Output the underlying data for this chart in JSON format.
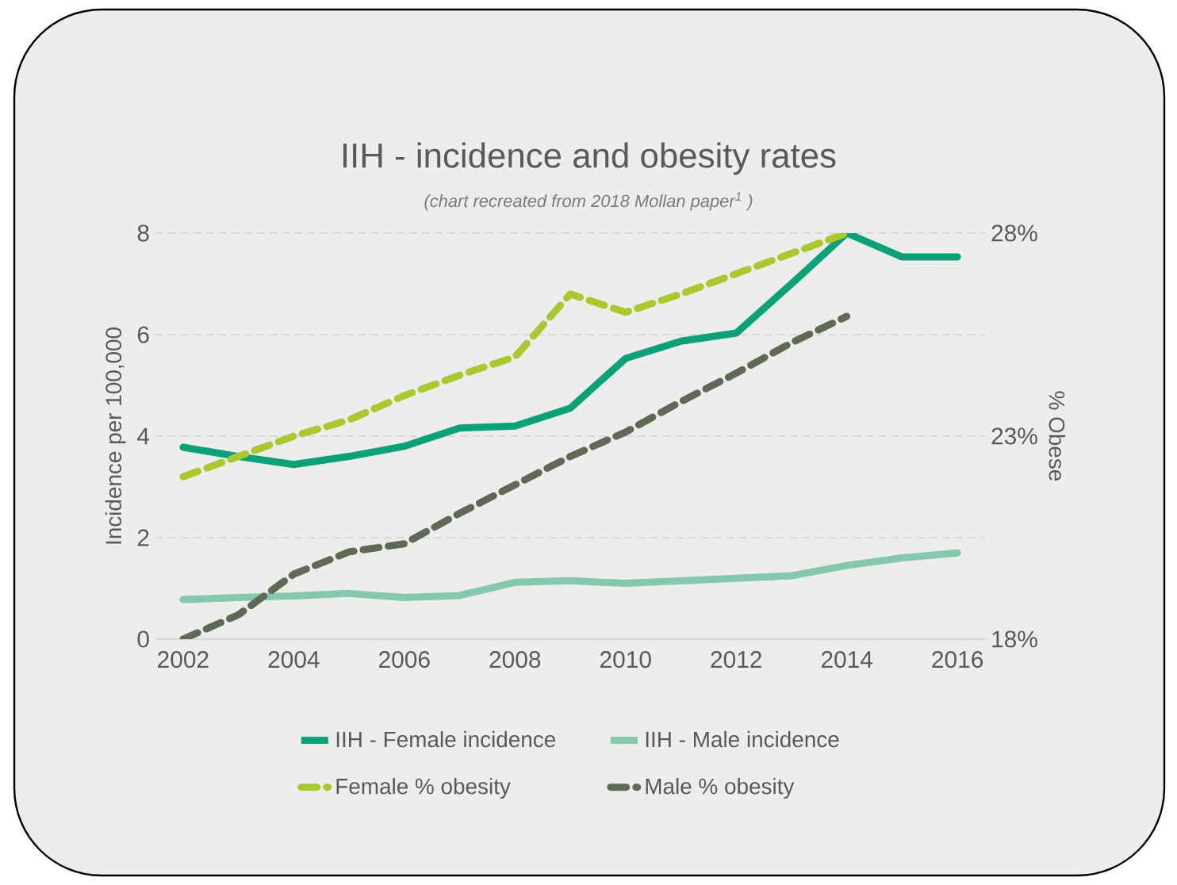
{
  "chart_data": {
    "type": "line",
    "title": "IIH - incidence and obesity rates",
    "subtitle": "(chart recreated from 2018 Mollan paper$^{1}$ )",
    "ylabel": "Incidence per 100,000",
    "y2label": "% Obese",
    "x": [
      2002,
      2003,
      2004,
      2005,
      2006,
      2007,
      2008,
      2009,
      2010,
      2011,
      2012,
      2013,
      2014,
      2015,
      2016
    ],
    "xlim": [
      2001.5,
      2016.5
    ],
    "xticks": [
      2002,
      2004,
      2006,
      2008,
      2010,
      2012,
      2014,
      2016
    ],
    "ylim": [
      0,
      8
    ],
    "yticks": [
      0,
      2,
      4,
      6,
      8
    ],
    "y2lim": [
      18,
      28
    ],
    "y2ticks": [
      {
        "value": 18,
        "label": "18%"
      },
      {
        "value": 23,
        "label": "23%"
      },
      {
        "value": 28,
        "label": "28%"
      }
    ],
    "grid": "y",
    "legend": "bottom",
    "series": [
      {
        "name": "IIH - Female incidence",
        "color": "#0ca178",
        "line_style": "solid",
        "values": [
          3.78,
          3.6,
          3.44,
          3.6,
          3.8,
          4.16,
          4.2,
          4.55,
          5.53,
          5.87,
          6.03,
          7.0,
          8.0,
          7.53,
          7.53
        ]
      },
      {
        "name": "IIH - Male incidence",
        "color": "#84c8ae",
        "line_style": "solid",
        "values": [
          0.78,
          0.82,
          0.85,
          0.9,
          0.82,
          0.86,
          1.12,
          1.15,
          1.1,
          1.15,
          1.2,
          1.25,
          1.45,
          1.6,
          1.7
        ]
      },
      {
        "name": "Female % obesity",
        "color": "#a9c92f",
        "line_style": "dashed",
        "axis": "y2",
        "values": [
          22.0,
          22.5,
          23.0,
          23.4,
          24.0,
          24.5,
          24.95,
          26.5,
          26.05,
          26.5,
          27.0,
          27.5,
          28.0,
          null,
          null
        ]
      },
      {
        "name": "Male % obesity",
        "color": "#5f6a55",
        "line_style": "dashed",
        "axis": "y2",
        "values": [
          18.0,
          18.6,
          19.6,
          20.15,
          20.35,
          21.1,
          21.8,
          22.5,
          23.1,
          23.85,
          24.55,
          25.3,
          25.95,
          null,
          null
        ]
      }
    ]
  }
}
